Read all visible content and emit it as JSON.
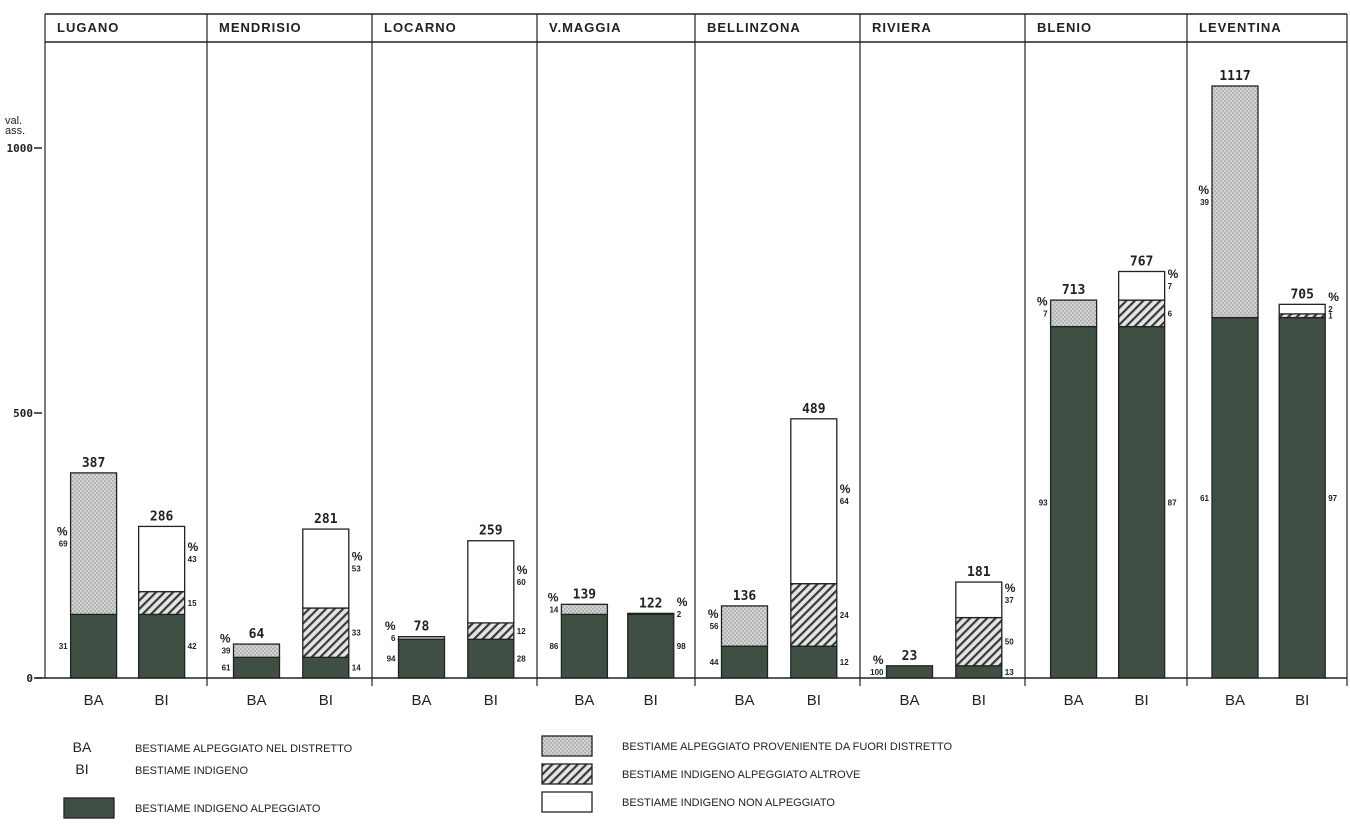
{
  "chart_data": {
    "type": "bar",
    "stacked": true,
    "y_unit_label": "val. ass.",
    "yticks": [
      0,
      500,
      1000
    ],
    "ylim": [
      0,
      1200
    ],
    "percent_sign": "%",
    "colors": {
      "indigeno_alpeggiato": "#3f4f43",
      "fuori_distretto": "#cfcfcf",
      "alpeggiato_altrove": "#d9d9d9",
      "non_alpeggiato": "#ffffff",
      "line": "#222222"
    },
    "districts": [
      {
        "name": "LUGANO",
        "BA": {
          "label": "BA",
          "total": "387",
          "segments": [
            {
              "key": "indigeno_alpeggiato",
              "pct": "31",
              "value": 120
            },
            {
              "key": "fuori_distretto",
              "pct": "69",
              "value": 267
            }
          ]
        },
        "BI": {
          "label": "BI",
          "total": "286",
          "segments": [
            {
              "key": "indigeno_alpeggiato",
              "pct": "42",
              "value": 120
            },
            {
              "key": "alpeggiato_altrove",
              "pct": "15",
              "value": 43
            },
            {
              "key": "non_alpeggiato",
              "pct": "43",
              "value": 123
            }
          ]
        }
      },
      {
        "name": "MENDRISIO",
        "BA": {
          "label": "BA",
          "total": "64",
          "segments": [
            {
              "key": "indigeno_alpeggiato",
              "pct": "61",
              "value": 39
            },
            {
              "key": "fuori_distretto",
              "pct": "39",
              "value": 25
            }
          ]
        },
        "BI": {
          "label": "BI",
          "total": "281",
          "segments": [
            {
              "key": "indigeno_alpeggiato",
              "pct": "14",
              "value": 39
            },
            {
              "key": "alpeggiato_altrove",
              "pct": "33",
              "value": 93
            },
            {
              "key": "non_alpeggiato",
              "pct": "53",
              "value": 149
            }
          ]
        }
      },
      {
        "name": "LOCARNO",
        "BA": {
          "label": "BA",
          "total": "78",
          "segments": [
            {
              "key": "indigeno_alpeggiato",
              "pct": "94",
              "value": 73
            },
            {
              "key": "fuori_distretto",
              "pct": "6",
              "value": 5
            }
          ]
        },
        "BI": {
          "label": "BI",
          "total": "259",
          "segments": [
            {
              "key": "indigeno_alpeggiato",
              "pct": "28",
              "value": 73
            },
            {
              "key": "alpeggiato_altrove",
              "pct": "12",
              "value": 31
            },
            {
              "key": "non_alpeggiato",
              "pct": "60",
              "value": 155
            }
          ]
        }
      },
      {
        "name": "V.MAGGIA",
        "BA": {
          "label": "BA",
          "total": "139",
          "segments": [
            {
              "key": "indigeno_alpeggiato",
              "pct": "86",
              "value": 120
            },
            {
              "key": "fuori_distretto",
              "pct": "14",
              "value": 19
            }
          ]
        },
        "BI": {
          "label": "BI",
          "total": "122",
          "segments": [
            {
              "key": "indigeno_alpeggiato",
              "pct": "98",
              "value": 120
            },
            {
              "key": "alpeggiato_altrove",
              "pct": "2",
              "value": 2
            }
          ]
        }
      },
      {
        "name": "BELLINZONA",
        "BA": {
          "label": "BA",
          "total": "136",
          "segments": [
            {
              "key": "indigeno_alpeggiato",
              "pct": "44",
              "value": 60
            },
            {
              "key": "fuori_distretto",
              "pct": "56",
              "value": 76
            }
          ]
        },
        "BI": {
          "label": "BI",
          "total": "489",
          "segments": [
            {
              "key": "indigeno_alpeggiato",
              "pct": "12",
              "value": 60
            },
            {
              "key": "alpeggiato_altrove",
              "pct": "24",
              "value": 118
            },
            {
              "key": "non_alpeggiato",
              "pct": "64",
              "value": 311
            }
          ]
        }
      },
      {
        "name": "RIVIERA",
        "BA": {
          "label": "BA",
          "total": "23",
          "segments": [
            {
              "key": "indigeno_alpeggiato",
              "pct": "100",
              "value": 23
            }
          ]
        },
        "BI": {
          "label": "BI",
          "total": "181",
          "segments": [
            {
              "key": "indigeno_alpeggiato",
              "pct": "13",
              "value": 23
            },
            {
              "key": "alpeggiato_altrove",
              "pct": "50",
              "value": 91
            },
            {
              "key": "non_alpeggiato",
              "pct": "37",
              "value": 67
            }
          ]
        }
      },
      {
        "name": "BLENIO",
        "BA": {
          "label": "BA",
          "total": "713",
          "segments": [
            {
              "key": "indigeno_alpeggiato",
              "pct": "93",
              "value": 663
            },
            {
              "key": "fuori_distretto",
              "pct": "7",
              "value": 50
            }
          ]
        },
        "BI": {
          "label": "BI",
          "total": "767",
          "segments": [
            {
              "key": "indigeno_alpeggiato",
              "pct": "87",
              "value": 663
            },
            {
              "key": "alpeggiato_altrove",
              "pct": "6",
              "value": 50
            },
            {
              "key": "non_alpeggiato",
              "pct": "7",
              "value": 54
            }
          ]
        }
      },
      {
        "name": "LEVENTINA",
        "BA": {
          "label": "BA",
          "total": "1117",
          "segments": [
            {
              "key": "indigeno_alpeggiato",
              "pct": "61",
              "value": 680
            },
            {
              "key": "fuori_distretto",
              "pct": "39",
              "value": 437
            }
          ]
        },
        "BI": {
          "label": "BI",
          "total": "705",
          "segments": [
            {
              "key": "indigeno_alpeggiato",
              "pct": "97",
              "value": 680
            },
            {
              "key": "alpeggiato_altrove",
              "pct": "1",
              "value": 7
            },
            {
              "key": "non_alpeggiato",
              "pct": "2",
              "value": 18
            }
          ]
        }
      }
    ],
    "legend": {
      "abbreviations": [
        {
          "abbr": "BA",
          "text": "BESTIAME ALPEGGIATO NEL DISTRETTO"
        },
        {
          "abbr": "BI",
          "text": "BESTIAME INDIGENO"
        }
      ],
      "swatches": [
        {
          "key": "indigeno_alpeggiato",
          "text": "BESTIAME INDIGENO ALPEGGIATO"
        },
        {
          "key": "fuori_distretto",
          "text": "BESTIAME ALPEGGIATO PROVENIENTE DA FUORI DISTRETTO"
        },
        {
          "key": "alpeggiato_altrove",
          "text": "BESTIAME INDIGENO ALPEGGIATO ALTROVE"
        },
        {
          "key": "non_alpeggiato",
          "text": "BESTIAME INDIGENO NON ALPEGGIATO"
        }
      ]
    }
  }
}
